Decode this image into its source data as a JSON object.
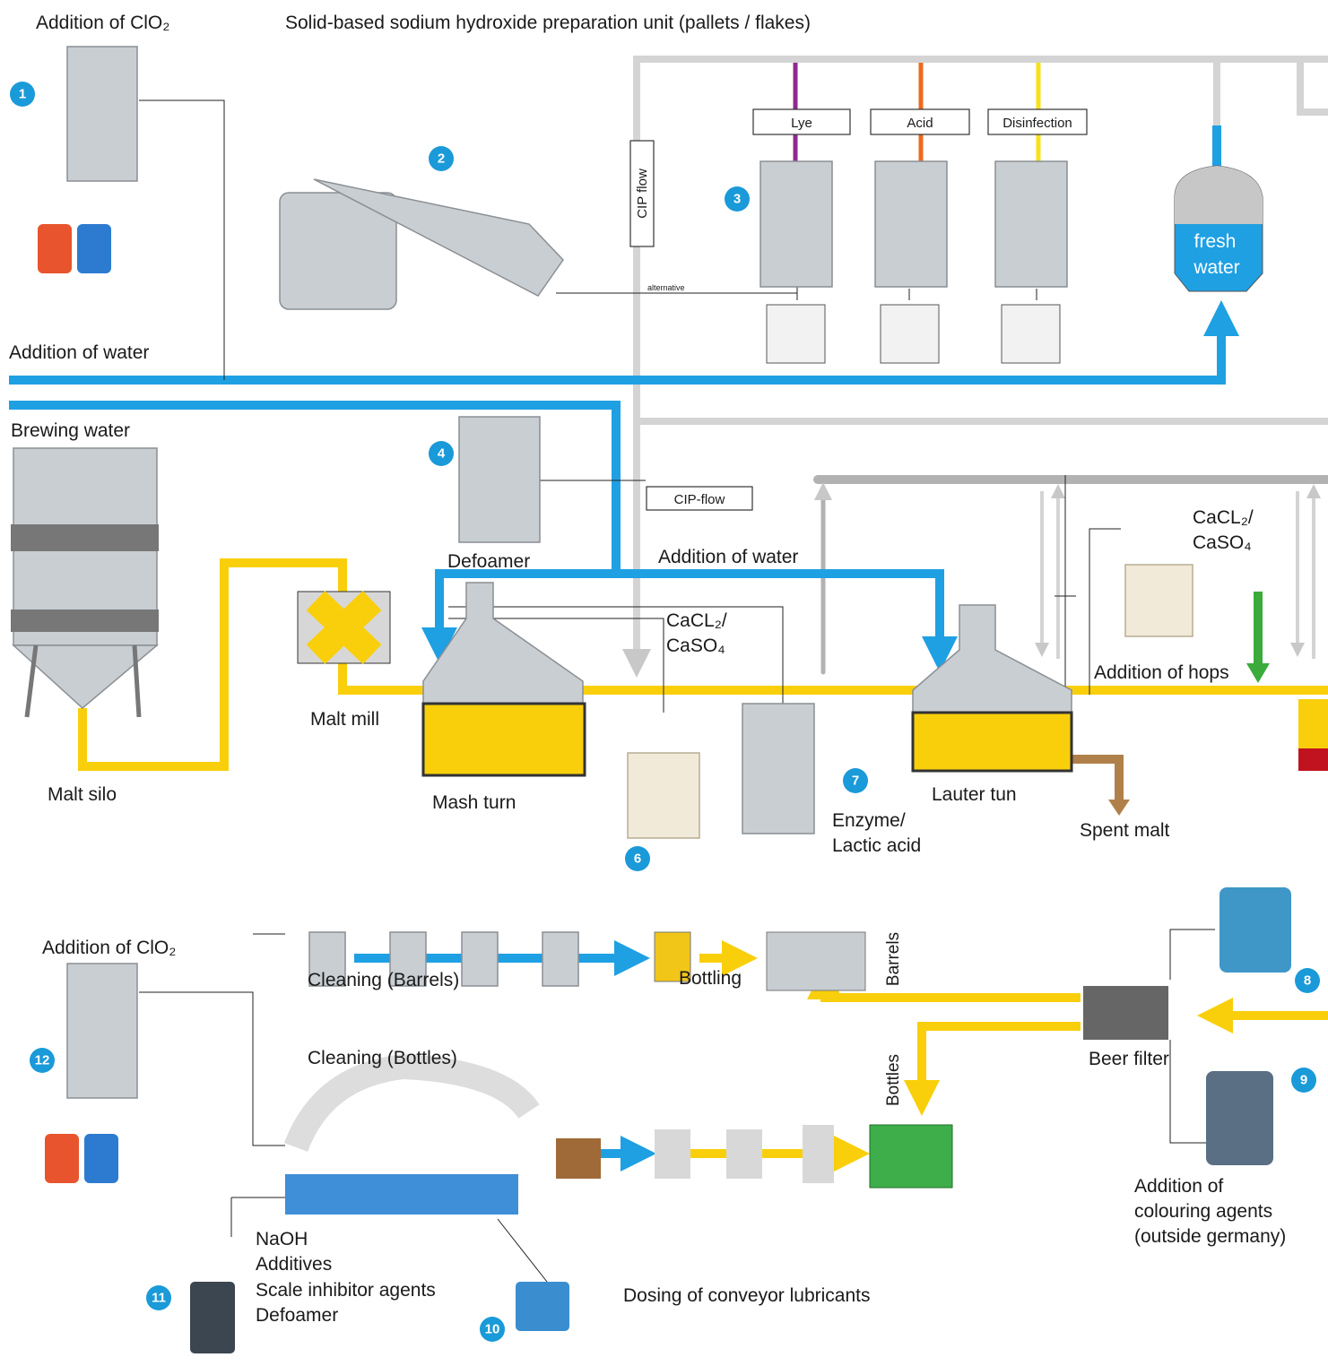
{
  "header": {
    "clo2_addition": "Addition of ClO₂",
    "caustic_unit": "Solid-based sodium hydroxide preparation unit (pallets / flakes)"
  },
  "cip": {
    "chemicals": [
      "Lye",
      "Acid",
      "Disinfection"
    ],
    "flow_vertical": "CIP flow",
    "alternative": "alternative",
    "flow_horizontal": "CIP-flow"
  },
  "water": {
    "fresh": [
      "fresh",
      "water"
    ],
    "addition_top": "Addition of water",
    "brewing": "Brewing water",
    "addition_mash": "Addition of water"
  },
  "brewhouse": {
    "malt_silo": "Malt silo",
    "malt_mill": "Malt mill",
    "mash_tun": "Mash turn",
    "lauter_tun": "Lauter tun",
    "spent_malt": "Spent malt",
    "hops": "Addition of hops",
    "defoamer": "Defoamer",
    "salts_mash": [
      "CaCL₂/",
      "CaSO₄"
    ],
    "salts_boil": [
      "CaCL₂/",
      "CaSO₄"
    ],
    "enzyme": [
      "Enzyme/",
      "Lactic acid"
    ]
  },
  "filling": {
    "clo2_addition": "Addition of ClO₂",
    "barrel_cleaning": "Cleaning (Barrels)",
    "bottling": "Bottling",
    "barrels": "Barrels",
    "bottle_cleaning": "Cleaning (Bottles)",
    "bottles": "Bottles",
    "beer_filter": "Beer filter",
    "colouring": [
      "Addition of",
      "colouring agents",
      "(outside germany)"
    ],
    "washer_chemicals": [
      "NaOH",
      "Additives",
      "Scale inhibitor agents",
      "Defoamer"
    ],
    "lubricants": "Dosing of conveyor lubricants"
  },
  "badges": [
    "1",
    "2",
    "3",
    "4",
    "6",
    "7",
    "8",
    "9",
    "10",
    "11",
    "12"
  ]
}
